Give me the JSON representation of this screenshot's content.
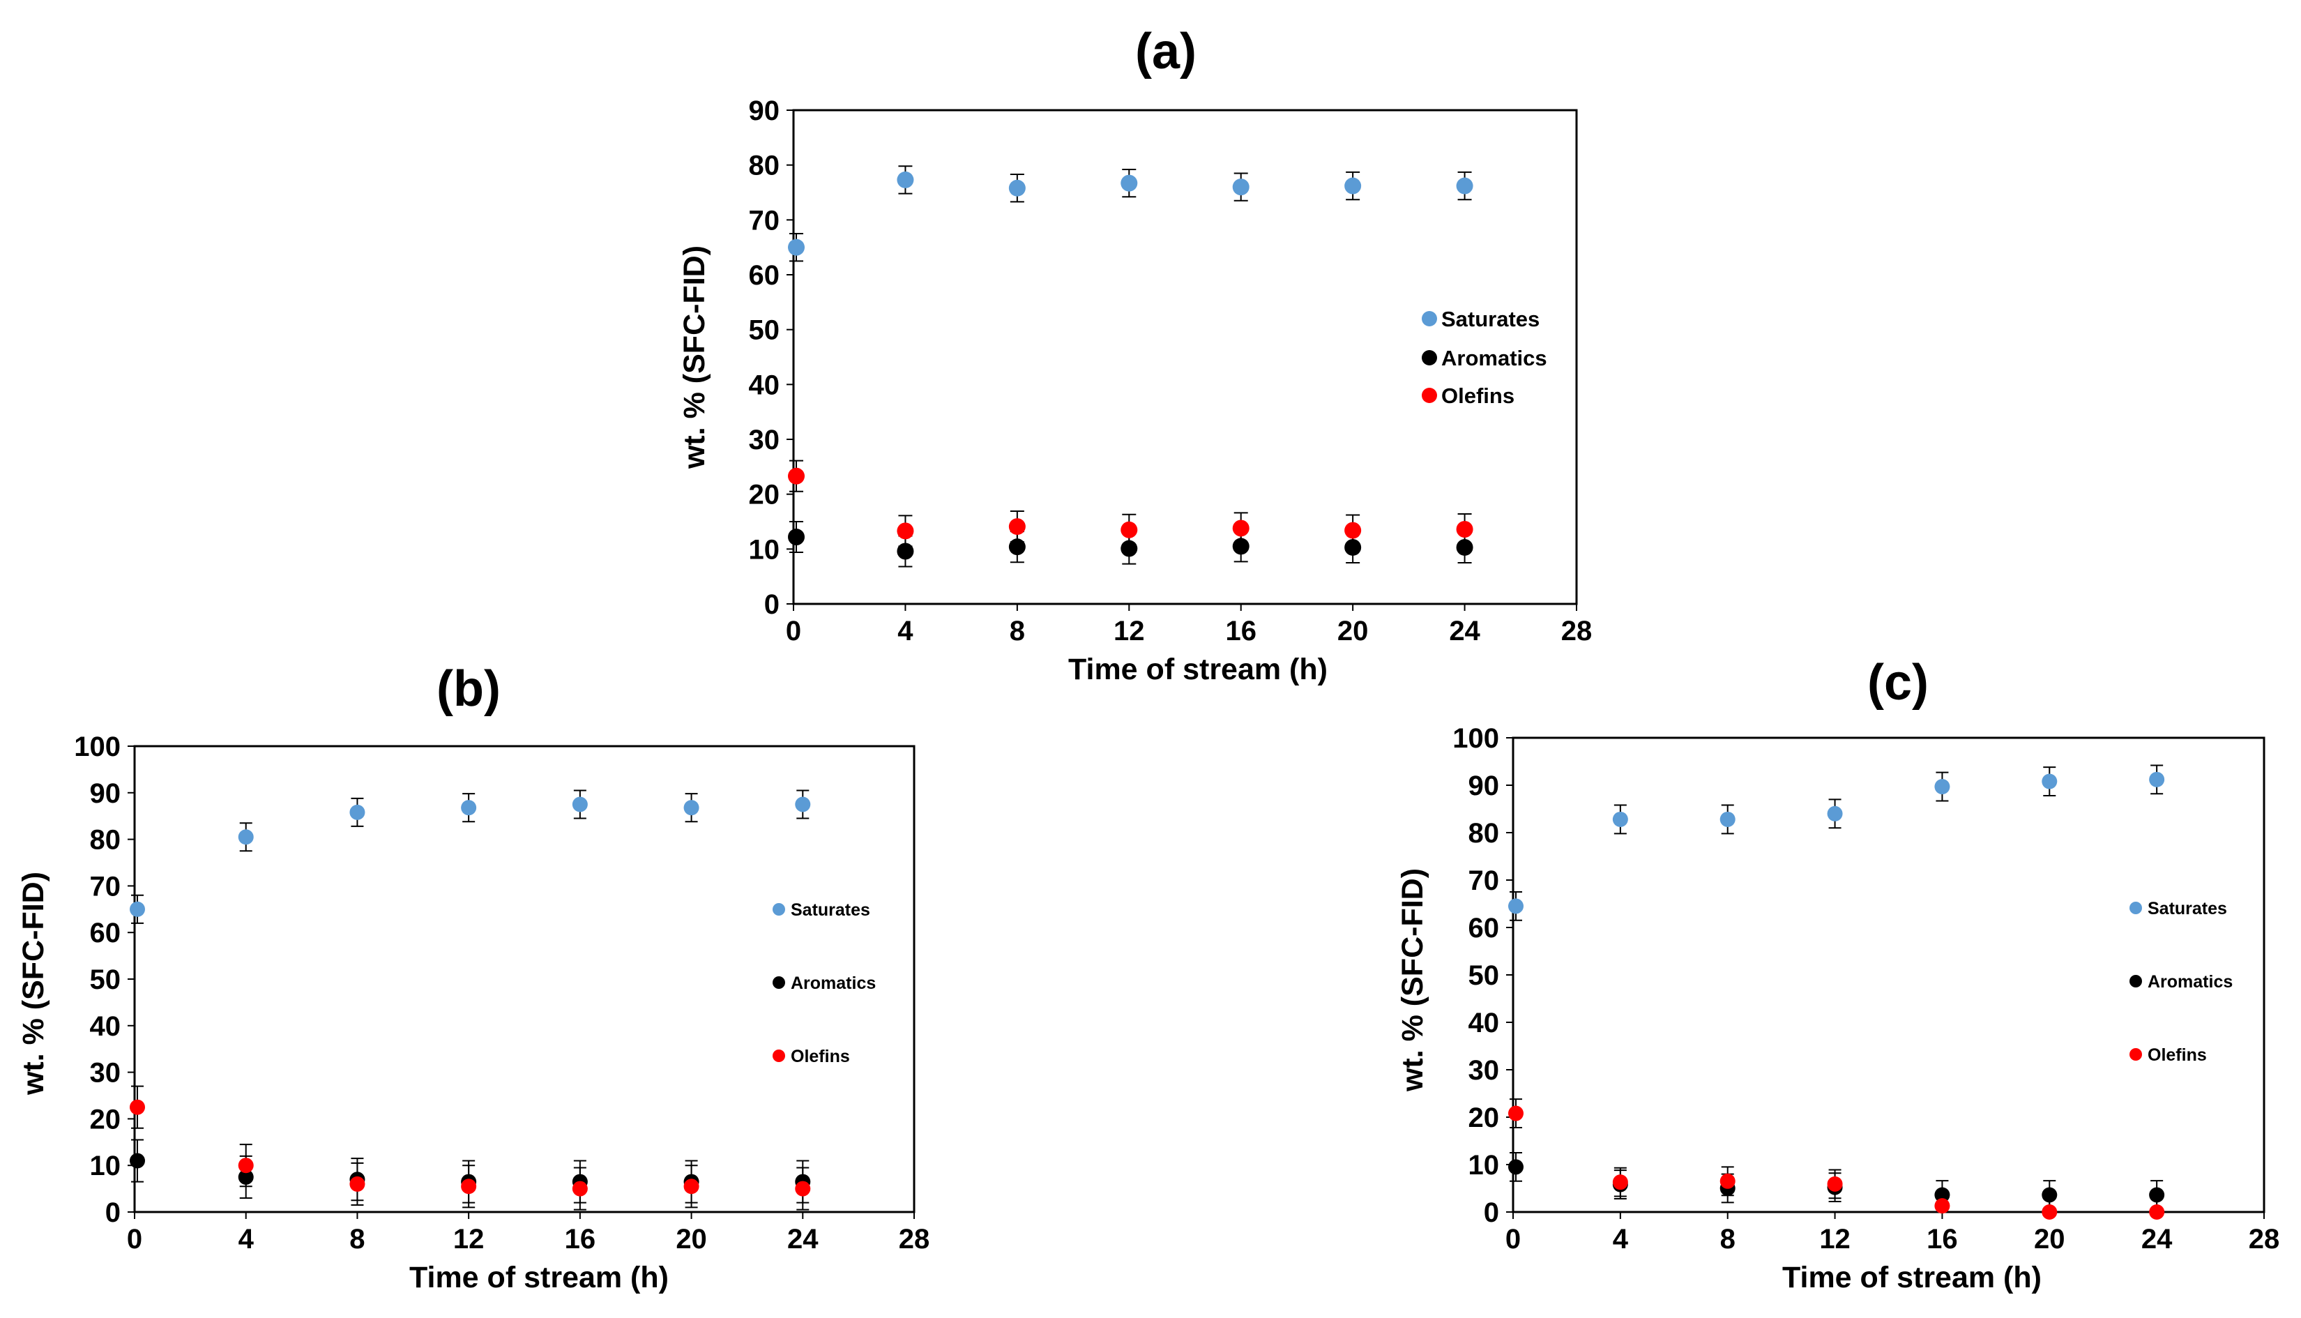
{
  "chart_data": [
    {
      "type": "scatter",
      "title": "(a)",
      "xlabel": "Time of stream (h)",
      "ylabel": "wt. % (SFC-FID)",
      "xlim": [
        0,
        28
      ],
      "ylim": [
        0,
        90
      ],
      "xticks": [
        0,
        4,
        8,
        12,
        16,
        20,
        24,
        28
      ],
      "yticks": [
        0,
        10,
        20,
        30,
        40,
        50,
        60,
        70,
        80,
        90
      ],
      "legend_position": "center-right",
      "series": [
        {
          "name": "Saturates",
          "color": "#5b9bd5",
          "x": [
            0,
            4,
            8,
            12,
            16,
            20,
            24
          ],
          "values": [
            65,
            77.3,
            75.8,
            76.7,
            76,
            76.2,
            76.2
          ],
          "error": [
            2.5,
            2.5,
            2.5,
            2.5,
            2.5,
            2.5,
            2.5
          ]
        },
        {
          "name": "Aromatics",
          "color": "#000000",
          "x": [
            0,
            4,
            8,
            12,
            16,
            20,
            24
          ],
          "values": [
            12.2,
            9.6,
            10.4,
            10.1,
            10.5,
            10.3,
            10.3
          ],
          "error": [
            2.8,
            2.8,
            2.8,
            2.8,
            2.8,
            2.8,
            2.8
          ]
        },
        {
          "name": "Olefins",
          "color": "#ff0000",
          "x": [
            0,
            4,
            8,
            12,
            16,
            20,
            24
          ],
          "values": [
            23.3,
            13.3,
            14.1,
            13.5,
            13.8,
            13.4,
            13.6
          ],
          "error": [
            2.8,
            2.8,
            2.8,
            2.8,
            2.8,
            2.8,
            2.8
          ]
        }
      ]
    },
    {
      "type": "scatter",
      "title": "(b)",
      "xlabel": "Time of stream (h)",
      "ylabel": "wt. % (SFC-FID)",
      "xlim": [
        0,
        28
      ],
      "ylim": [
        0,
        100
      ],
      "xticks": [
        0,
        4,
        8,
        12,
        16,
        20,
        24,
        28
      ],
      "yticks": [
        0,
        10,
        20,
        30,
        40,
        50,
        60,
        70,
        80,
        90,
        100
      ],
      "legend_position": "center-right",
      "series": [
        {
          "name": "Saturates",
          "color": "#5b9bd5",
          "x": [
            0,
            4,
            8,
            12,
            16,
            20,
            24
          ],
          "values": [
            65,
            80.5,
            85.8,
            86.8,
            87.5,
            86.8,
            87.5
          ],
          "error": [
            3,
            3,
            3,
            3,
            3,
            3,
            3
          ]
        },
        {
          "name": "Aromatics",
          "color": "#000000",
          "x": [
            0,
            4,
            8,
            12,
            16,
            20,
            24
          ],
          "values": [
            11,
            7.5,
            7,
            6.5,
            6.5,
            6.5,
            6.5
          ],
          "error": [
            4.5,
            4.5,
            4.5,
            4.5,
            4.5,
            4.5,
            4.5
          ]
        },
        {
          "name": "Olefins",
          "color": "#ff0000",
          "x": [
            0,
            4,
            8,
            12,
            16,
            20,
            24
          ],
          "values": [
            22.5,
            10,
            6,
            5.5,
            5,
            5.5,
            5
          ],
          "error": [
            4.5,
            4.5,
            4.5,
            4.5,
            4.5,
            4.5,
            4.5
          ]
        }
      ]
    },
    {
      "type": "scatter",
      "title": "(c)",
      "xlabel": "Time of stream (h)",
      "ylabel": "wt. % (SFC-FID)",
      "xlim": [
        0,
        28
      ],
      "ylim": [
        0,
        100
      ],
      "xticks": [
        0,
        4,
        8,
        12,
        16,
        20,
        24,
        28
      ],
      "yticks": [
        0,
        10,
        20,
        30,
        40,
        50,
        60,
        70,
        80,
        90,
        100
      ],
      "legend_position": "center-right",
      "series": [
        {
          "name": "Saturates",
          "color": "#5b9bd5",
          "x": [
            0,
            4,
            8,
            12,
            16,
            20,
            24
          ],
          "values": [
            64.5,
            82.8,
            82.8,
            84,
            89.7,
            90.8,
            91.2
          ],
          "error": [
            3,
            3,
            3,
            3,
            3,
            3,
            3
          ]
        },
        {
          "name": "Aromatics",
          "color": "#000000",
          "x": [
            0,
            4,
            8,
            12,
            16,
            20,
            24
          ],
          "values": [
            9.5,
            5.8,
            5,
            5.2,
            3.6,
            3.6,
            3.6
          ],
          "error": [
            3,
            3,
            3,
            3,
            3,
            3,
            3
          ]
        },
        {
          "name": "Olefins",
          "color": "#ff0000",
          "x": [
            0,
            4,
            8,
            12,
            16,
            20,
            24
          ],
          "values": [
            20.8,
            6.3,
            6.5,
            5.9,
            1.3,
            0,
            0
          ],
          "error": [
            3,
            3,
            3,
            3,
            3,
            3,
            3
          ]
        }
      ]
    }
  ]
}
